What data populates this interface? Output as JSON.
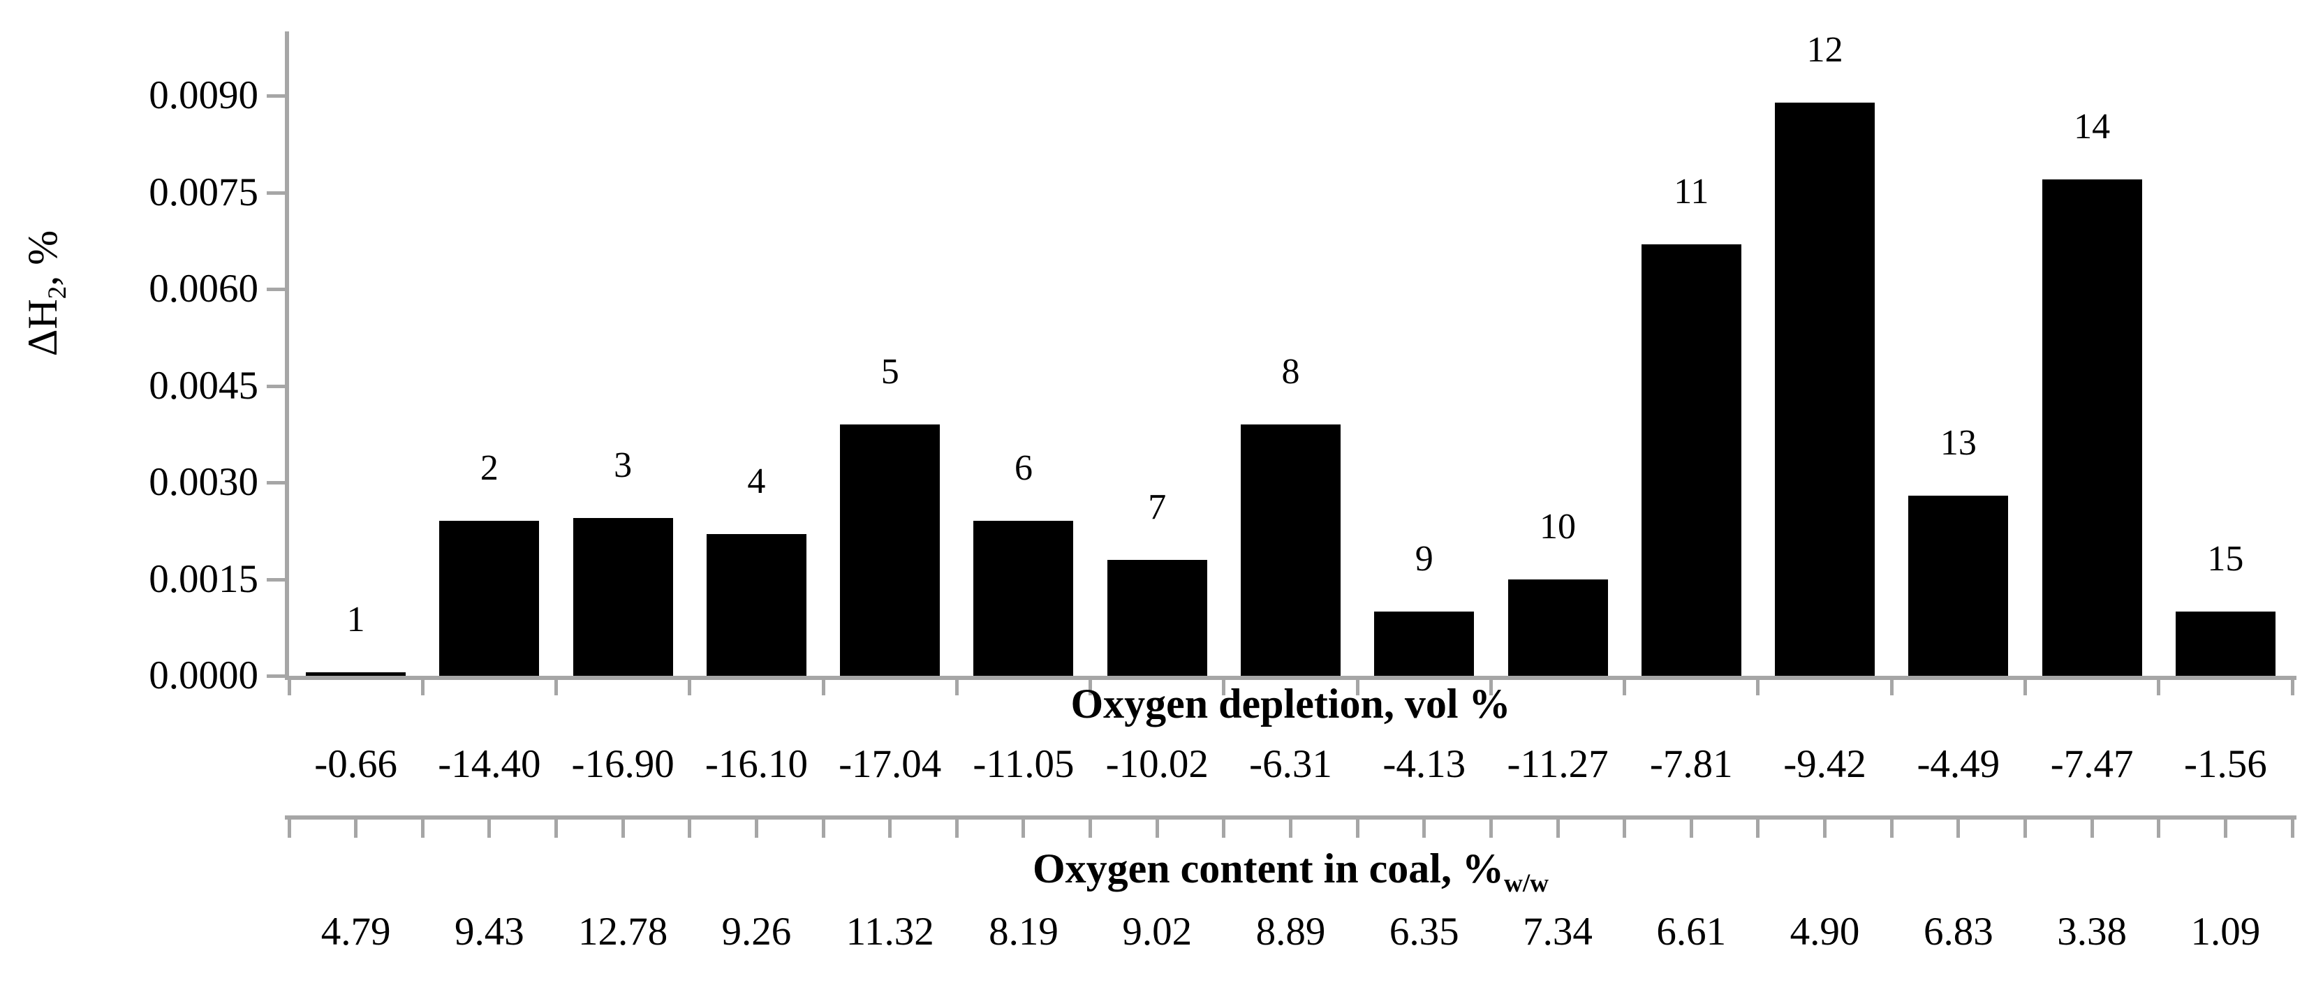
{
  "chart_data": {
    "type": "bar",
    "title": "",
    "bar_color": "#000000",
    "axis_color": "#a6a6a6",
    "text_color": "#000000",
    "background_color": "#ffffff",
    "grid": false,
    "legend": false,
    "ylabel_parts": {
      "pre": "ΔH",
      "sub": "2",
      "post": ", %"
    },
    "ylim": [
      0,
      0.01
    ],
    "y_tick_step": 0.0015,
    "y_tick_labels": [
      "0.0000",
      "0.0015",
      "0.0030",
      "0.0045",
      "0.0060",
      "0.0075",
      "0.0090"
    ],
    "y_tick_values": [
      0.0,
      0.0015,
      0.003,
      0.0045,
      0.006,
      0.0075,
      0.009
    ],
    "categories": [
      "1",
      "2",
      "3",
      "4",
      "5",
      "6",
      "7",
      "8",
      "9",
      "10",
      "11",
      "12",
      "13",
      "14",
      "15"
    ],
    "values": [
      5e-05,
      0.0024,
      0.00245,
      0.0022,
      0.0039,
      0.0024,
      0.0018,
      0.0039,
      0.001,
      0.0015,
      0.0067,
      0.0089,
      0.0028,
      0.0077,
      0.001
    ],
    "x_axis_rows": [
      {
        "title_parts": {
          "pre": "Oxygen depletion, vol %",
          "sub": ""
        },
        "values": [
          "-0.66",
          "-14.40",
          "-16.90",
          "-16.10",
          "-17.04",
          "-11.05",
          "-10.02",
          "-6.31",
          "-4.13",
          "-11.27",
          "-7.81",
          "-9.42",
          "-4.49",
          "-7.47",
          "-1.56"
        ]
      },
      {
        "title_parts": {
          "pre": "Oxygen content in coal, %",
          "sub": "w/w"
        },
        "values": [
          "4.79",
          "9.43",
          "12.78",
          "9.26",
          "11.32",
          "8.19",
          "9.02",
          "8.89",
          "6.35",
          "7.34",
          "6.61",
          "4.90",
          "6.83",
          "3.38",
          "1.09"
        ]
      }
    ]
  }
}
